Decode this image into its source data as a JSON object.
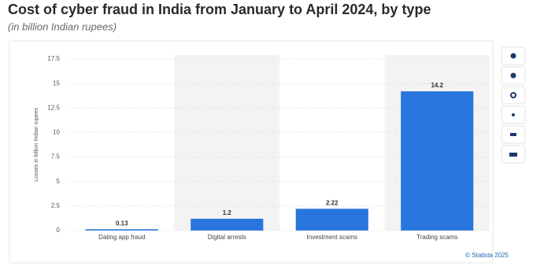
{
  "chart_data": {
    "type": "bar",
    "title": "Cost of cyber fraud in India from January to April 2024, by type",
    "subtitle": "(in billion Indian rupees)",
    "y_label": "Losses in billion Indian rupees",
    "categories": [
      "Dating app fraud",
      "Digital arrests",
      "Investment scams",
      "Trading scams"
    ],
    "values": [
      0.13,
      1.2,
      2.22,
      14.2
    ],
    "color": "#2876dd",
    "ylim": [
      0,
      17.5
    ],
    "yticks": [
      0,
      2.5,
      5,
      7.5,
      10,
      12.5,
      15,
      17.5
    ],
    "grid": true,
    "credit": "© Statista 2025"
  }
}
